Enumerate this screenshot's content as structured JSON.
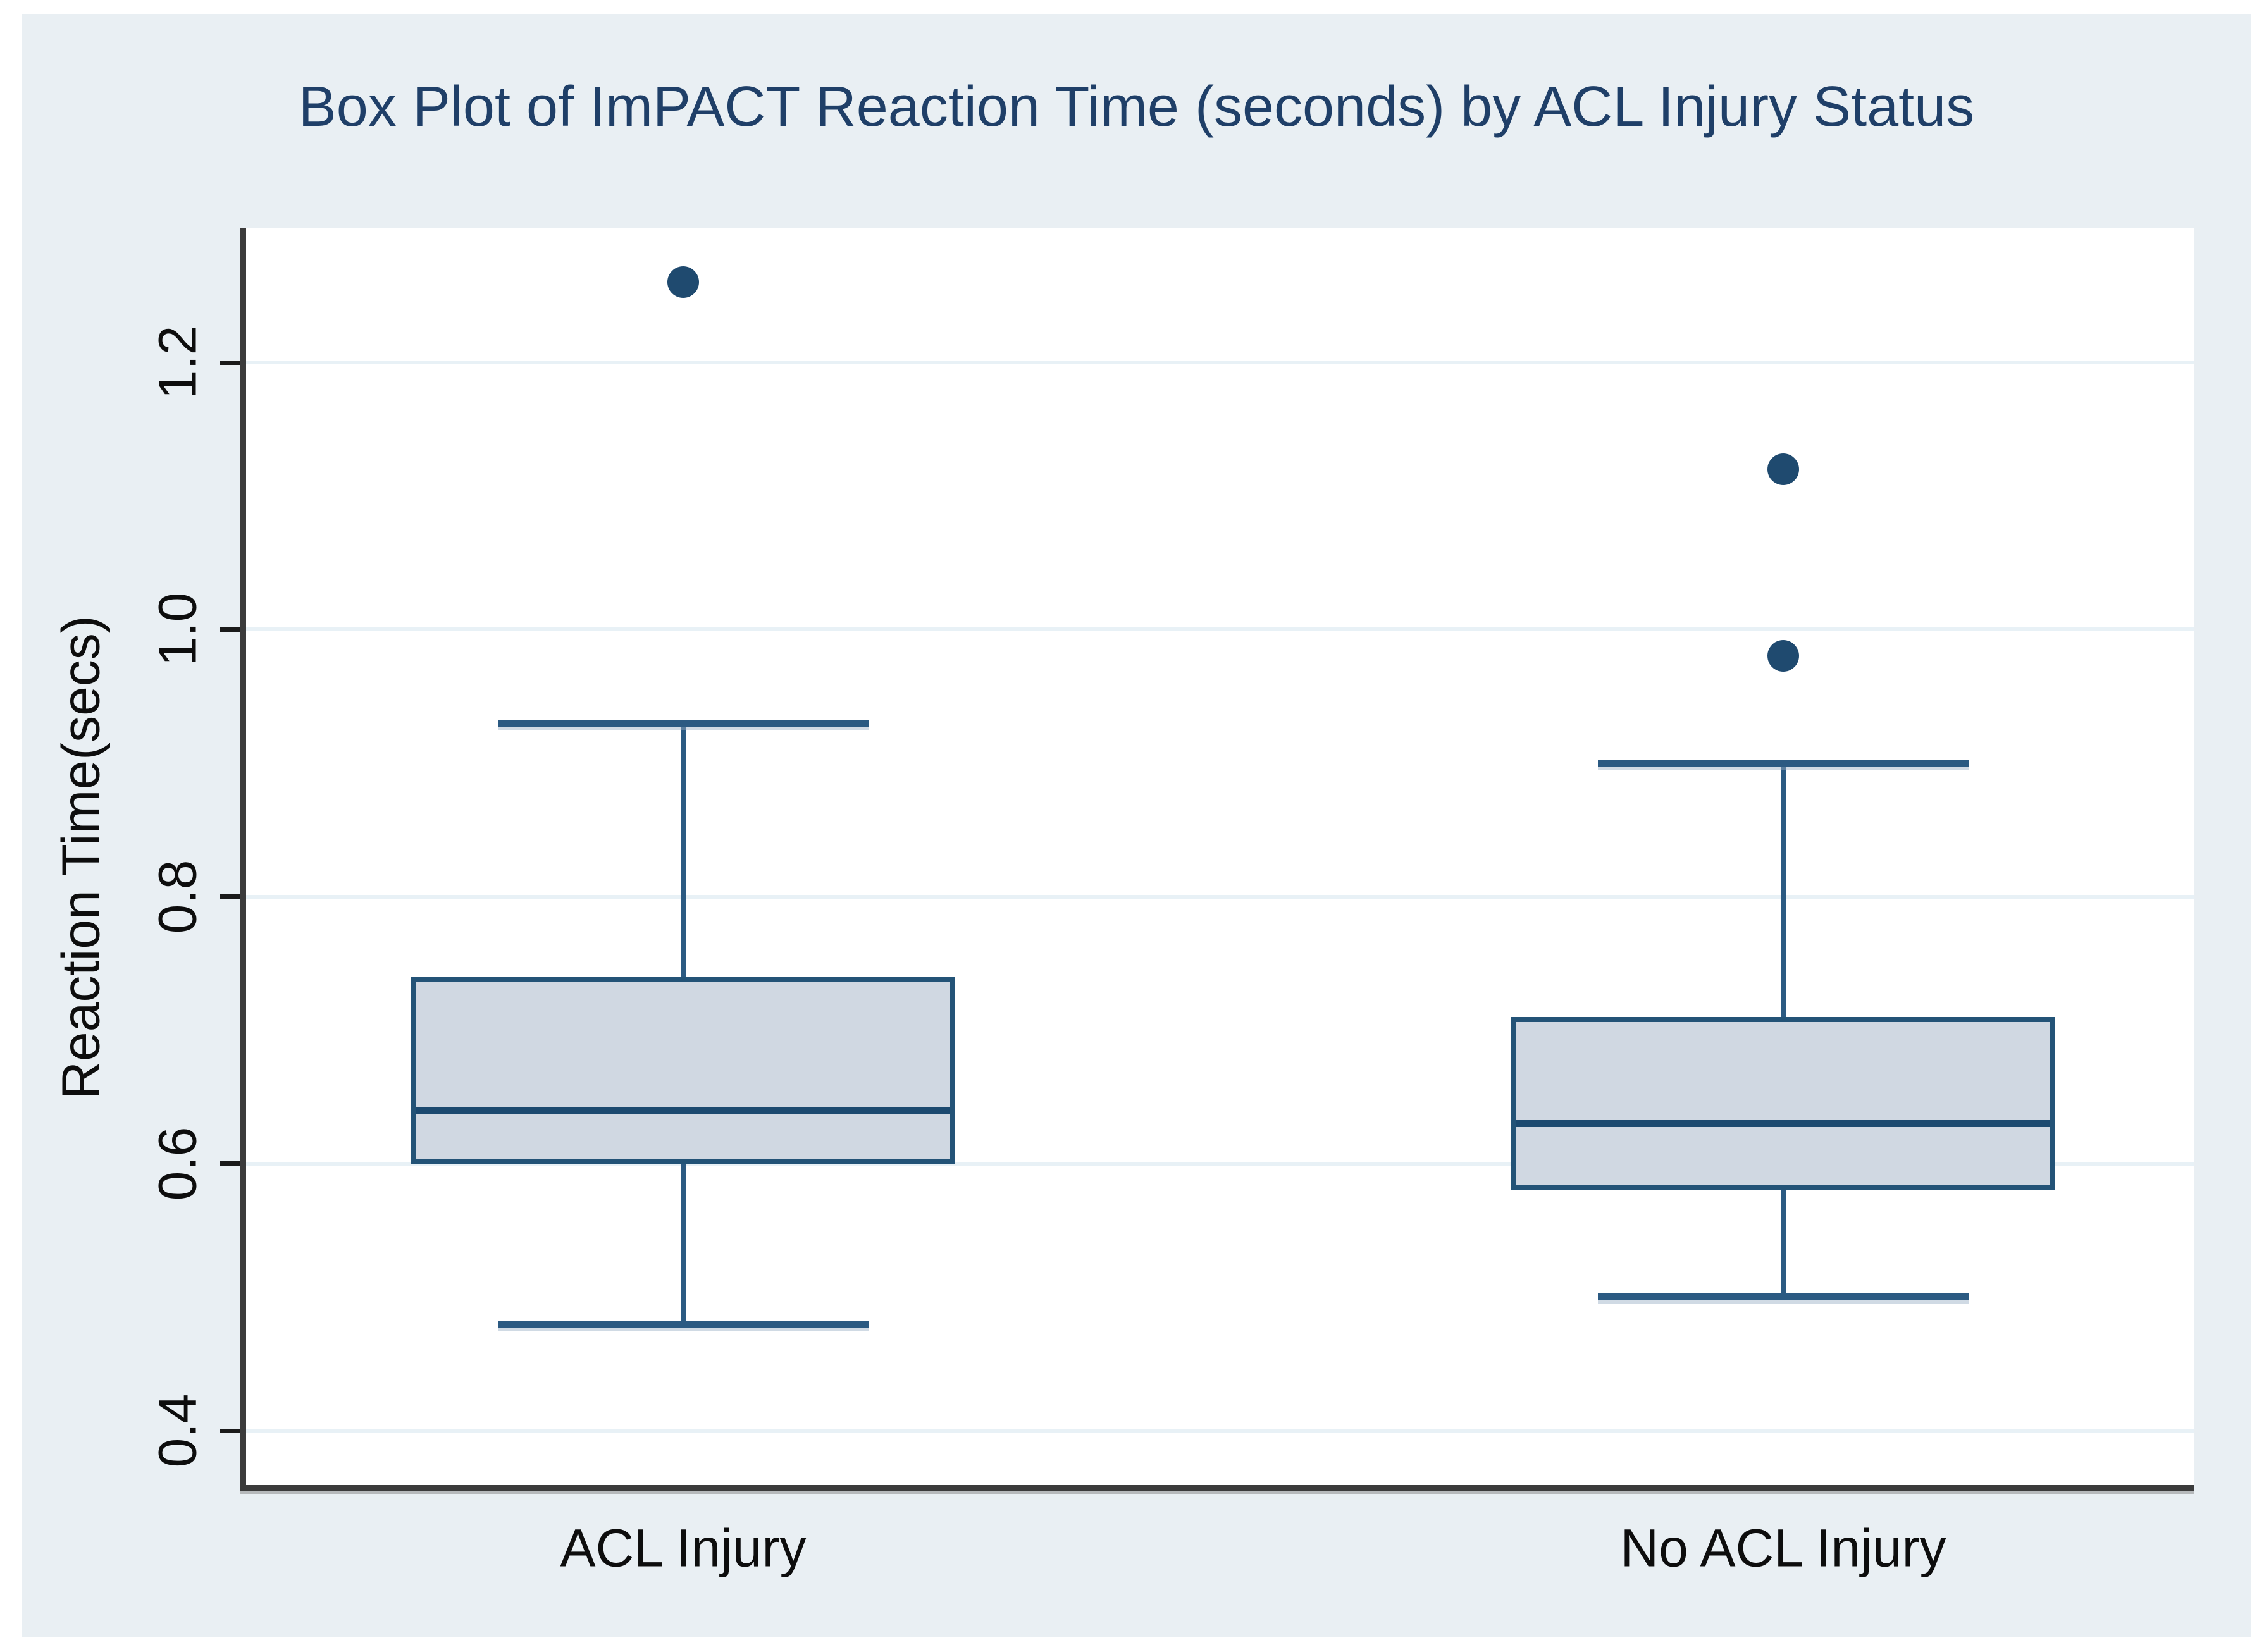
{
  "chart_data": {
    "type": "box",
    "title": "Box Plot of ImPACT Reaction Time (seconds) by ACL Injury Status",
    "ylabel": "Reaction Time(secs)",
    "xlabel": "",
    "categories": [
      "ACL Injury",
      "No ACL Injury"
    ],
    "y_tick_labels": [
      "0.4",
      "0.6",
      "0.8",
      "1.0",
      "1.2"
    ],
    "y_ticks": [
      0.4,
      0.6,
      0.8,
      1.0,
      1.2
    ],
    "ylim": [
      0.36,
      1.3
    ],
    "grid": true,
    "legend_position": "none",
    "series": [
      {
        "category": "ACL Injury",
        "whisker_low": 0.48,
        "q1": 0.6,
        "median": 0.64,
        "q3": 0.74,
        "whisker_high": 0.93,
        "outliers": [
          1.26
        ]
      },
      {
        "category": "No ACL Injury",
        "whisker_low": 0.5,
        "q1": 0.58,
        "median": 0.63,
        "q3": 0.71,
        "whisker_high": 0.9,
        "outliers": [
          0.98,
          1.12
        ]
      }
    ],
    "colors": {
      "figure_bg": "#e9eff3",
      "plot_bg": "#ffffff",
      "gridline": "#e8f1f6",
      "axis_line": "#3b3b3b",
      "tick": "#1a1a1a",
      "box_fill": "#d0d8e2",
      "box_border": "#235377",
      "median": "#1c4a70",
      "whisker": "#2b5a82",
      "outlier": "#1f4a6f",
      "title_text": "#1f3f68",
      "label_text": "#0d0d0d"
    }
  }
}
